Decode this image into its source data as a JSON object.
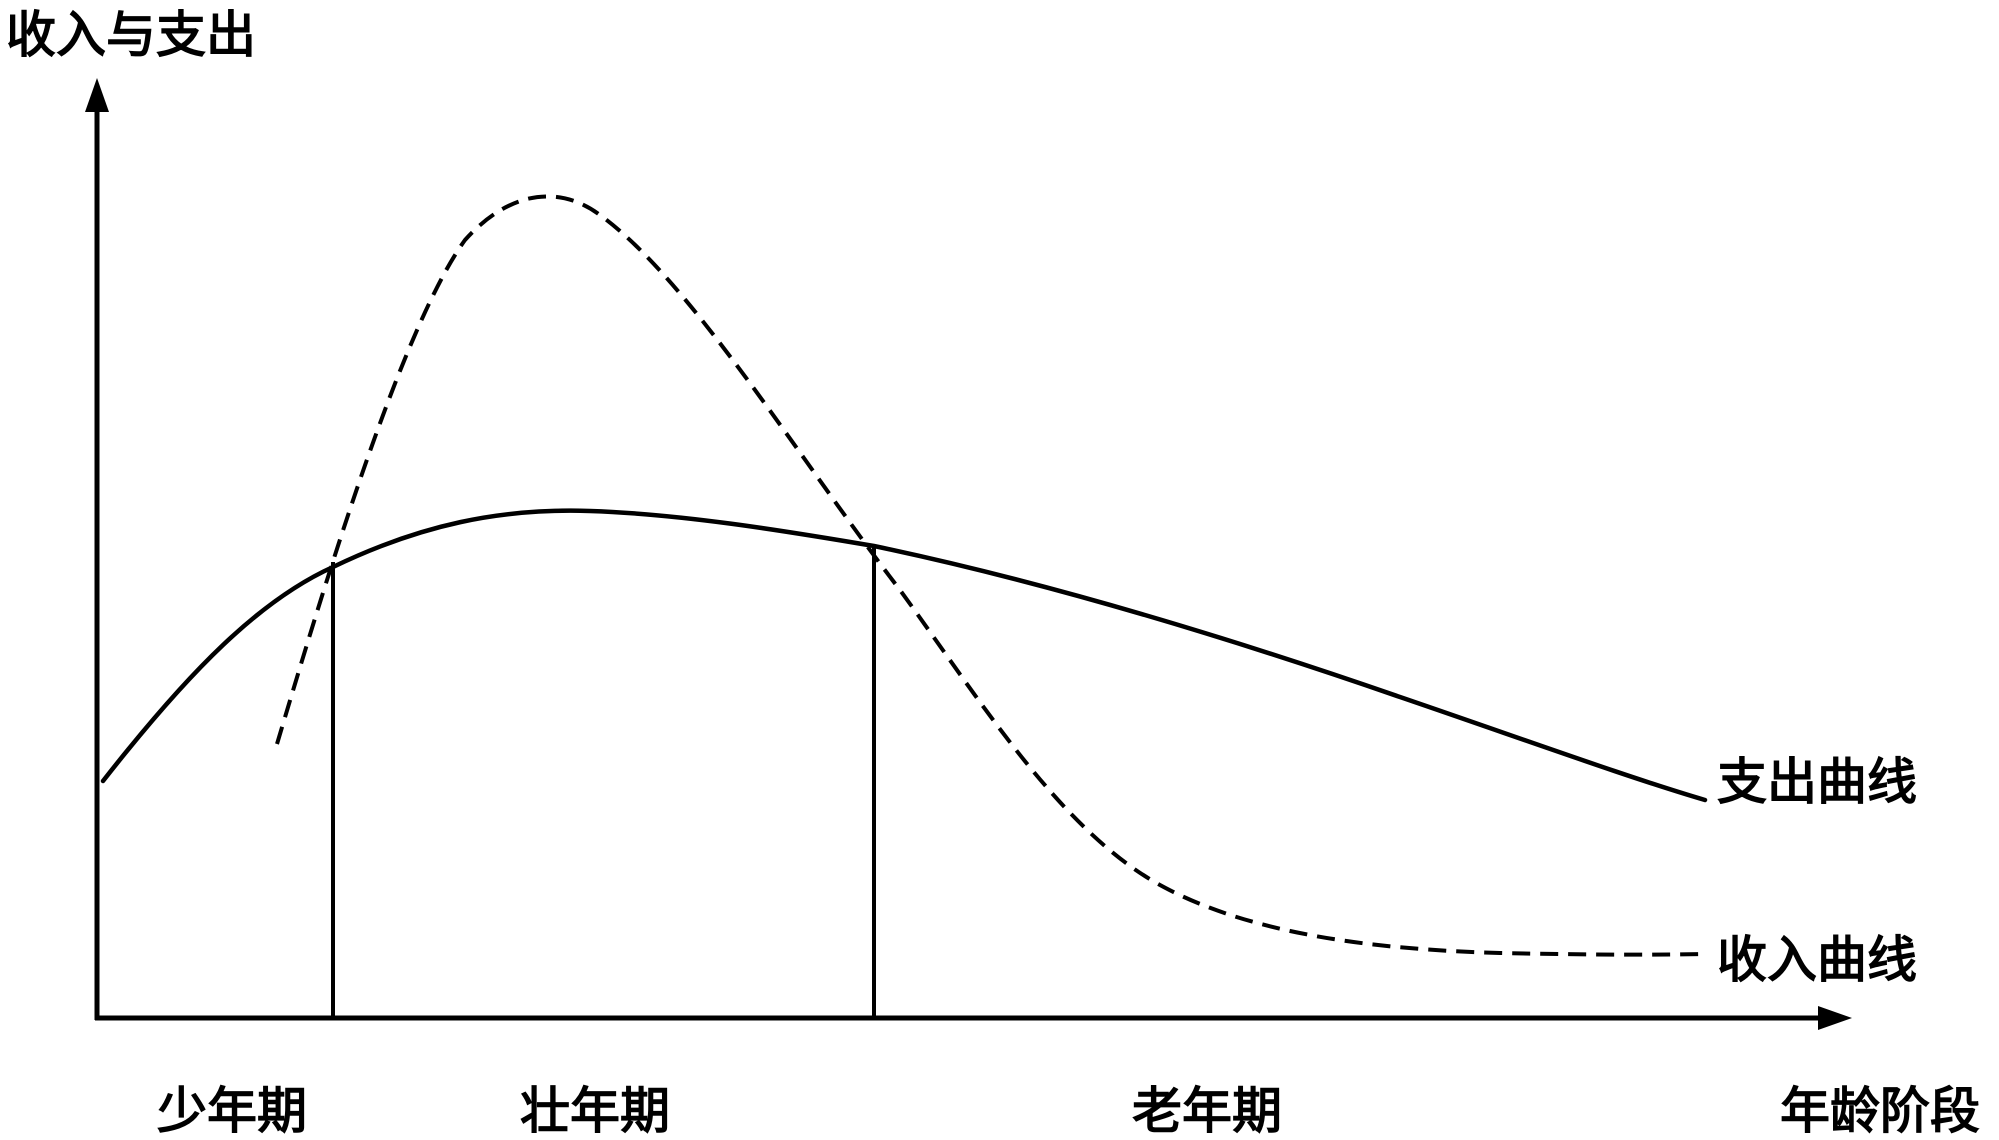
{
  "y_axis_label": "收入与支出",
  "x_axis_label": "年龄阶段",
  "curves": {
    "solid": {
      "label": "支出曲线",
      "style": "solid"
    },
    "dashed": {
      "label": "收入曲线",
      "style": "dashed"
    }
  },
  "stages": [
    {
      "label": "少年期"
    },
    {
      "label": "壮年期"
    },
    {
      "label": "老年期"
    }
  ]
}
